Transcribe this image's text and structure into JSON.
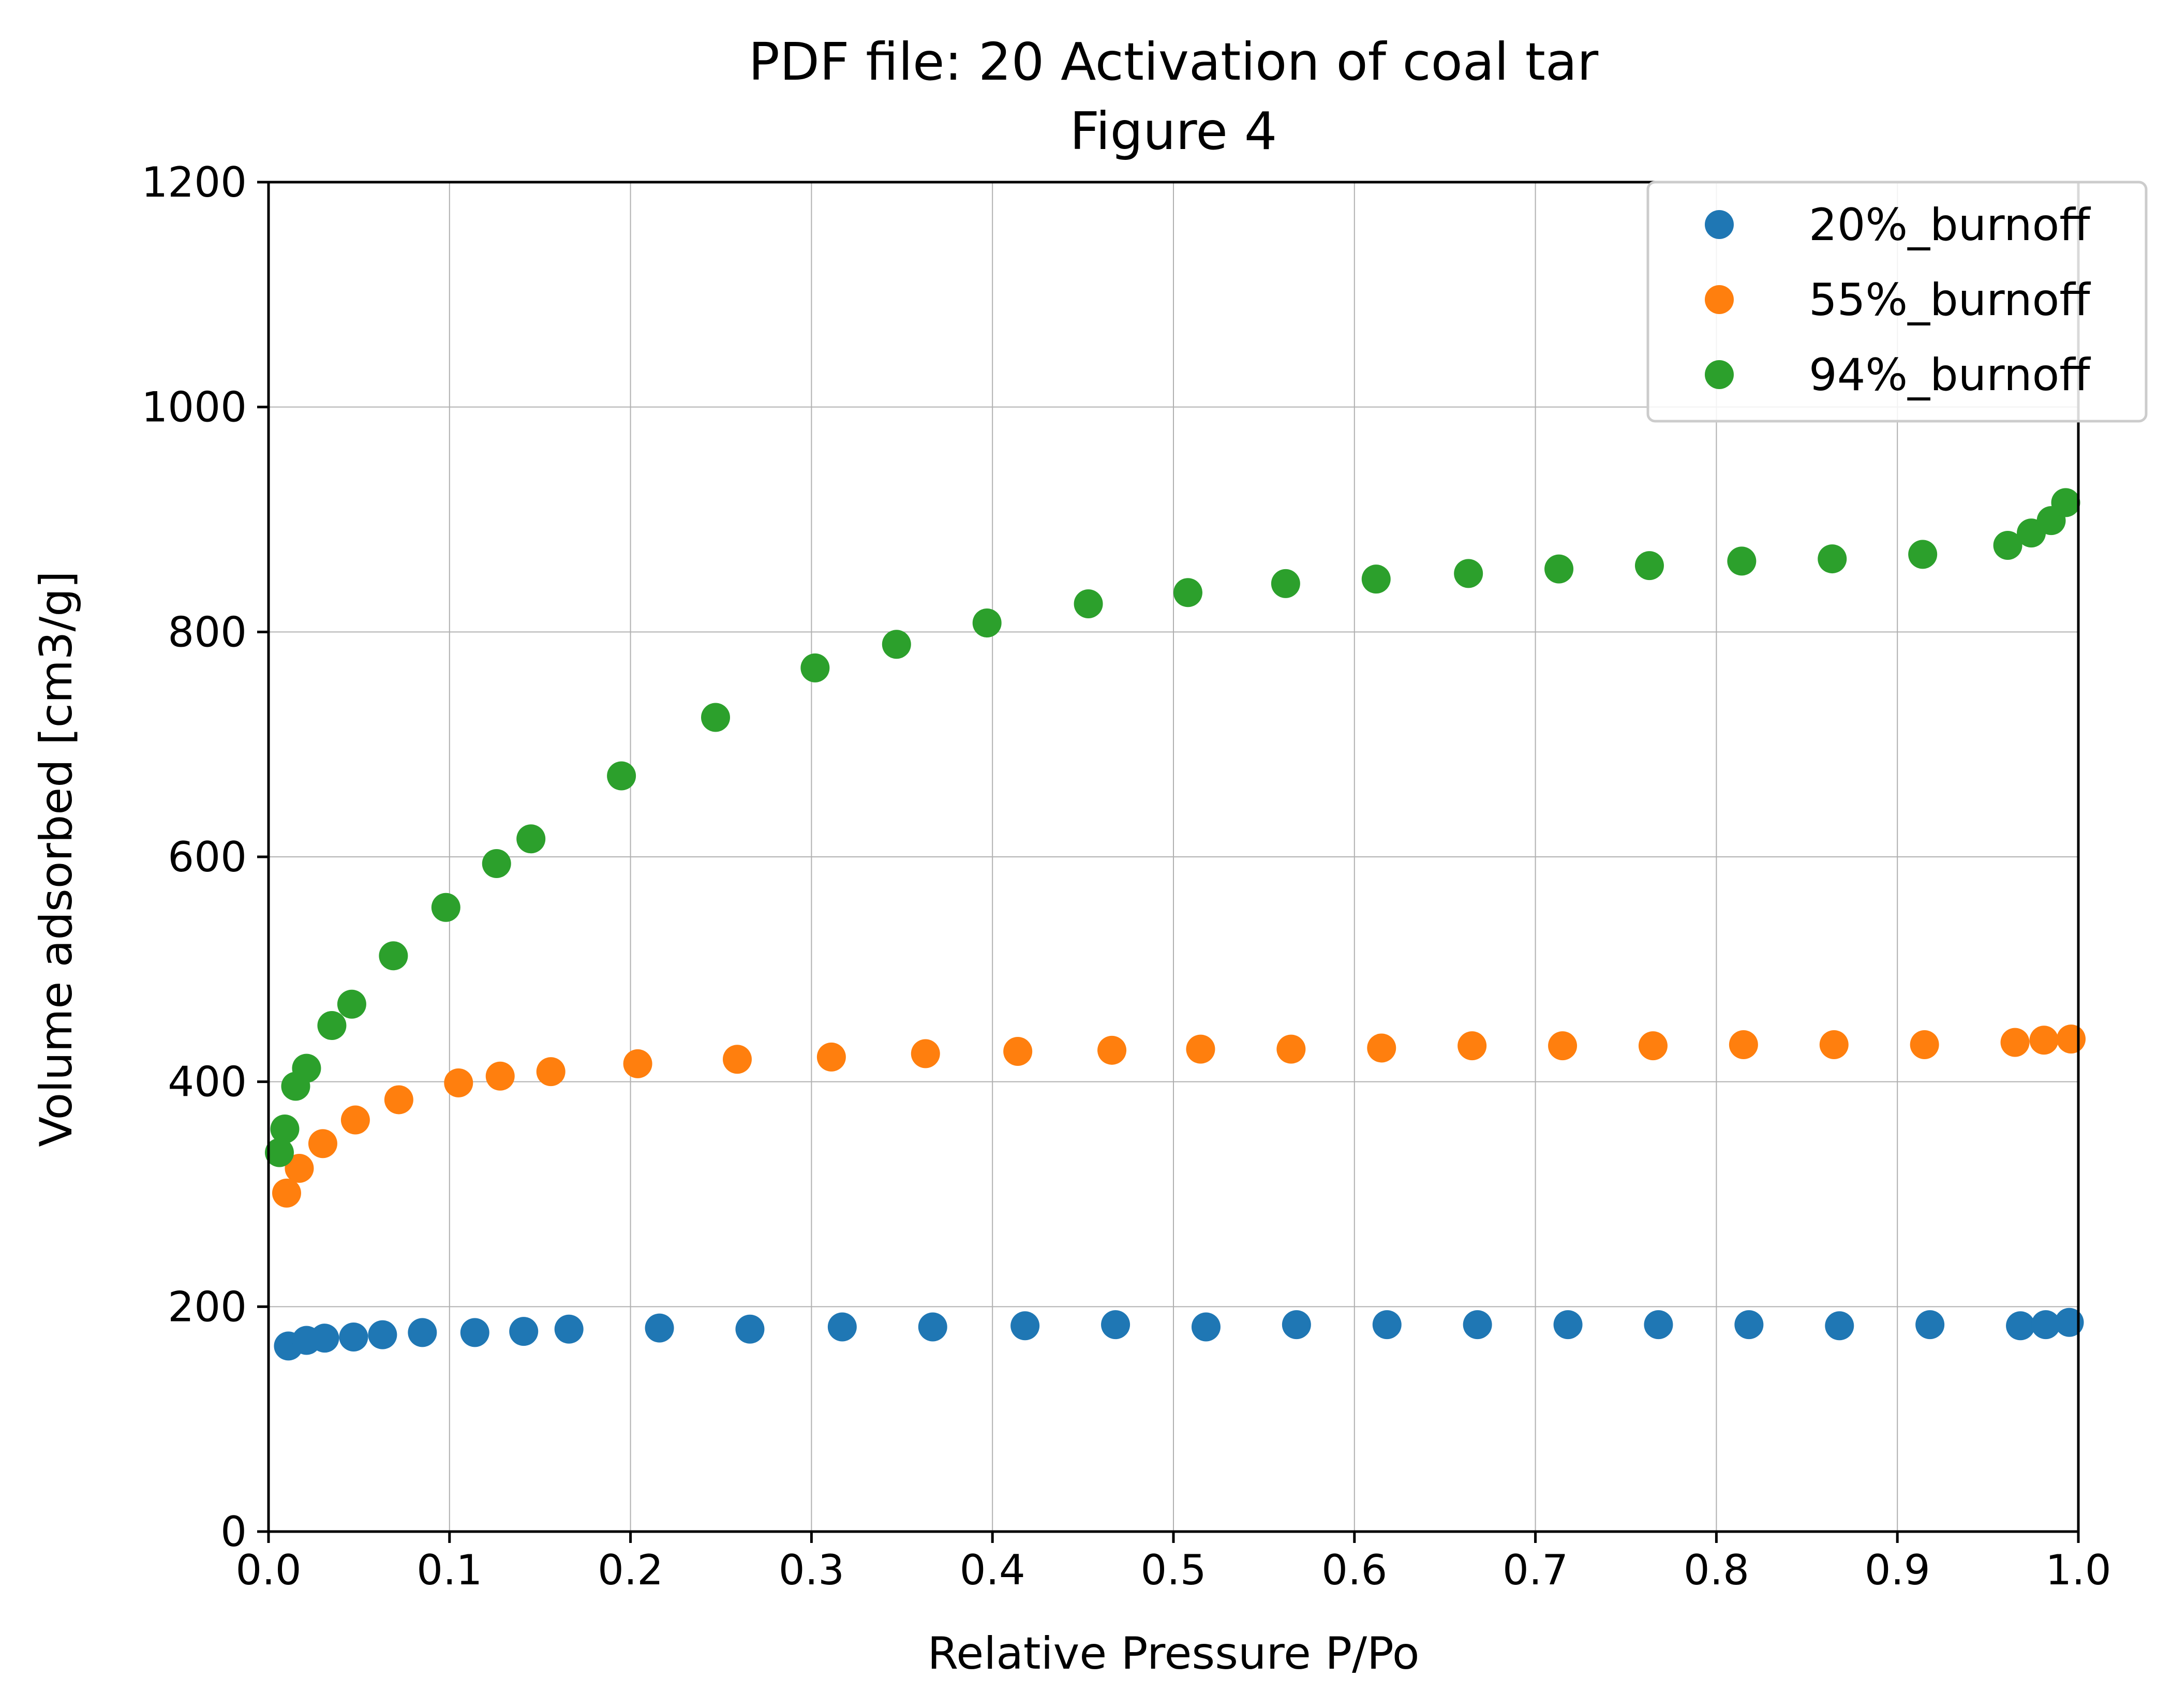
{
  "chart_data": {
    "type": "scatter",
    "title": "PDF file: 20 Activation of coal tar",
    "subtitle": "Figure 4",
    "xlabel": "Relative Pressure P/Po",
    "ylabel": "Volume adsorbed [cm3/g]",
    "xlim": [
      0.0,
      1.0
    ],
    "ylim": [
      0,
      1200
    ],
    "xticks": [
      "0.0",
      "0.1",
      "0.2",
      "0.3",
      "0.4",
      "0.5",
      "0.6",
      "0.7",
      "0.8",
      "0.9",
      "1.0"
    ],
    "yticks": [
      "0",
      "200",
      "400",
      "600",
      "800",
      "1000",
      "1200"
    ],
    "grid": true,
    "legend_position": "top-right",
    "series": [
      {
        "name": "20%_burnoff",
        "color": "#1f77b4",
        "x": [
          0.011,
          0.021,
          0.031,
          0.047,
          0.063,
          0.085,
          0.114,
          0.141,
          0.166,
          0.216,
          0.266,
          0.317,
          0.367,
          0.418,
          0.468,
          0.518,
          0.568,
          0.618,
          0.668,
          0.718,
          0.768,
          0.818,
          0.868,
          0.918,
          0.968,
          0.982,
          0.995
        ],
        "y": [
          165,
          170,
          172,
          173,
          175,
          177,
          177,
          178,
          180,
          181,
          180,
          182,
          182,
          183,
          184,
          182,
          184,
          184,
          184,
          184,
          184,
          184,
          183,
          184,
          183,
          184,
          186
        ]
      },
      {
        "name": "55%_burnoff",
        "color": "#ff7f0e",
        "x": [
          0.01,
          0.017,
          0.03,
          0.048,
          0.072,
          0.105,
          0.128,
          0.156,
          0.204,
          0.259,
          0.311,
          0.363,
          0.414,
          0.466,
          0.515,
          0.565,
          0.615,
          0.665,
          0.715,
          0.765,
          0.815,
          0.865,
          0.915,
          0.965,
          0.981,
          0.996
        ],
        "y": [
          301,
          323,
          345,
          366,
          384,
          399,
          405,
          409,
          416,
          420,
          422,
          425,
          427,
          428,
          429,
          429,
          430,
          432,
          432,
          432,
          433,
          433,
          433,
          435,
          437,
          438
        ]
      },
      {
        "name": "94%_burnoff",
        "color": "#2ca02c",
        "x": [
          0.006,
          0.009,
          0.015,
          0.021,
          0.035,
          0.046,
          0.069,
          0.098,
          0.126,
          0.145,
          0.195,
          0.247,
          0.302,
          0.347,
          0.397,
          0.453,
          0.508,
          0.562,
          0.612,
          0.663,
          0.713,
          0.763,
          0.814,
          0.864,
          0.914,
          0.961,
          0.974,
          0.985,
          0.993
        ],
        "y": [
          337,
          358,
          396,
          412,
          450,
          469,
          512,
          555,
          594,
          616,
          672,
          724,
          768,
          789,
          808,
          825,
          835,
          843,
          847,
          852,
          856,
          859,
          863,
          865,
          869,
          877,
          888,
          899,
          915
        ]
      }
    ]
  }
}
